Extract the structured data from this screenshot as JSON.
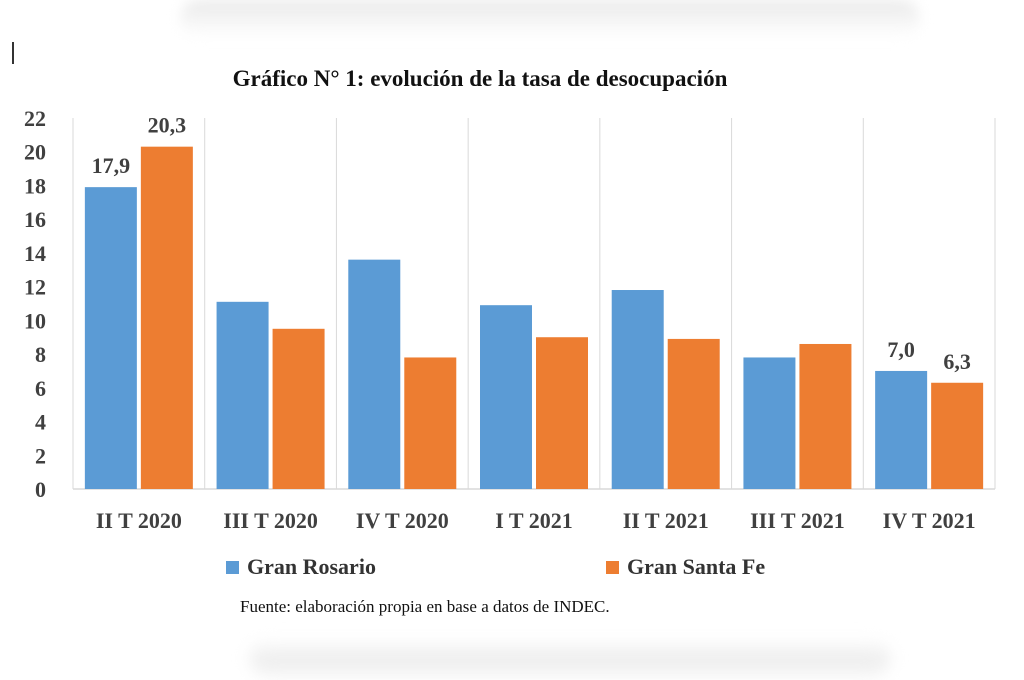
{
  "chart_data": {
    "type": "bar",
    "title": "Gráfico N° 1: evolución de la tasa de desocupación",
    "categories": [
      "II T 2020",
      "III T 2020",
      "IV T 2020",
      "I T 2021",
      "II T 2021",
      "III T 2021",
      "IV T 2021"
    ],
    "series": [
      {
        "name": "Gran Rosario",
        "color": "#5b9bd5",
        "values": [
          17.9,
          11.1,
          13.6,
          10.9,
          11.8,
          7.8,
          7.0
        ],
        "data_labels": [
          "17,9",
          "",
          "",
          "",
          "",
          "",
          "7,0"
        ]
      },
      {
        "name": "Gran Santa Fe",
        "color": "#ed7d31",
        "values": [
          20.3,
          9.5,
          7.8,
          9.0,
          8.9,
          8.6,
          6.3
        ],
        "data_labels": [
          "20,3",
          "",
          "",
          "",
          "",
          "",
          "6,3"
        ]
      }
    ],
    "ylim": [
      0,
      22
    ],
    "yticks": [
      0,
      2,
      4,
      6,
      8,
      10,
      12,
      14,
      16,
      18,
      20,
      22
    ],
    "grid": "vertical category separators",
    "legend_position": "bottom",
    "xlabel": "",
    "ylabel": ""
  },
  "footnote": "Fuente: elaboración propia en base a datos de INDEC."
}
